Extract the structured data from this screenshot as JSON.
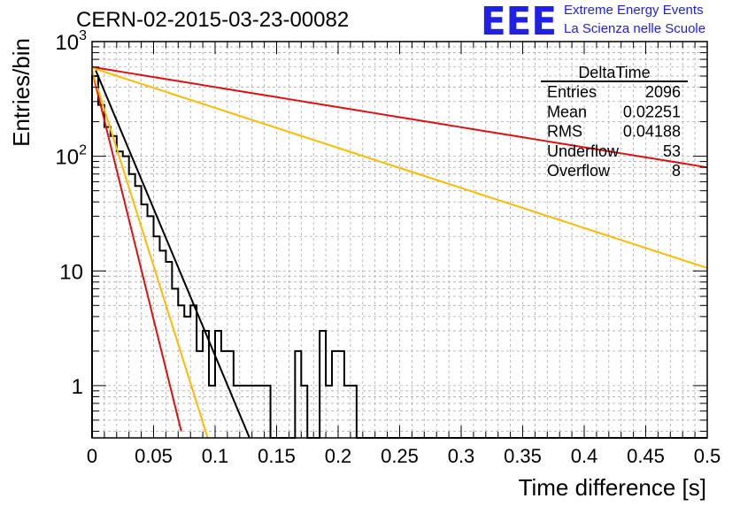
{
  "header": {
    "run_title": "CERN-02-2015-03-23-00082",
    "logo_text": "EEE",
    "logo_line1": "Extreme Energy Events",
    "logo_line2": "La Scienza nelle Scuole",
    "logo_color": "#1f1fe6"
  },
  "stats_box": {
    "title": "DeltaTime",
    "rows": [
      {
        "label": "Entries",
        "value": "2096"
      },
      {
        "label": "Mean",
        "value": "0.02251"
      },
      {
        "label": "RMS",
        "value": "0.04188"
      },
      {
        "label": "Underflow",
        "value": "53"
      },
      {
        "label": "Overflow",
        "value": "8"
      }
    ]
  },
  "chart_data": {
    "type": "line",
    "title": "",
    "xlabel": "Time difference [s]",
    "ylabel": "Entries/bin",
    "xlim": [
      0,
      0.5
    ],
    "ylim": [
      0.35,
      1000
    ],
    "y_scale": "log",
    "grid": true,
    "grid_style": "dashed",
    "x_ticks": [
      0,
      0.05,
      0.1,
      0.15,
      0.2,
      0.25,
      0.3,
      0.35,
      0.4,
      0.45,
      0.5
    ],
    "x_tick_labels": [
      "0",
      "0.05",
      "0.1",
      "0.15",
      "0.2",
      "0.25",
      "0.3",
      "0.35",
      "0.4",
      "0.45",
      "0.5"
    ],
    "y_tick_labels": [
      {
        "value": 1,
        "label": "1"
      },
      {
        "value": 10,
        "label": "10"
      },
      {
        "value": 100,
        "label": "10",
        "exp": "2"
      },
      {
        "value": 1000,
        "label": "10",
        "exp": "3"
      }
    ],
    "histogram": {
      "bin_width": 0.005,
      "color": "#000000",
      "values": [
        500,
        280,
        180,
        150,
        110,
        100,
        70,
        55,
        38,
        30,
        20,
        15,
        12,
        7,
        5,
        4,
        5,
        2,
        3,
        1,
        3,
        2,
        2,
        1,
        1,
        1,
        1,
        1,
        1,
        0,
        0,
        0,
        0,
        2,
        1,
        0,
        0,
        3,
        1,
        2,
        2,
        1,
        1,
        0,
        0,
        0,
        0,
        0,
        0,
        0,
        0,
        0,
        0,
        0,
        0,
        0,
        0,
        0,
        0,
        0,
        0,
        0,
        0,
        0,
        0,
        0,
        0,
        0,
        0,
        0,
        0,
        0,
        0,
        0,
        0,
        0,
        0,
        0,
        0,
        0,
        0,
        0,
        0,
        0,
        0,
        0,
        0,
        0,
        0,
        0,
        0,
        0,
        0,
        0,
        0,
        0,
        0,
        0,
        0,
        0
      ]
    },
    "series": [
      {
        "color": "#000000",
        "x": [
          0.003,
          0.128
        ],
        "y": [
          560,
          0.35
        ]
      },
      {
        "color": "#dd1111",
        "x": [
          0,
          0.0725
        ],
        "y": [
          560,
          0.4
        ]
      },
      {
        "color": "#ffbb00",
        "x": [
          0,
          0.094
        ],
        "y": [
          560,
          0.35
        ]
      },
      {
        "color": "#dd1111",
        "x": [
          0,
          0.5
        ],
        "y": [
          600,
          80
        ]
      },
      {
        "color": "#ffbb00",
        "x": [
          0,
          0.5
        ],
        "y": [
          590,
          10.6
        ]
      }
    ]
  }
}
